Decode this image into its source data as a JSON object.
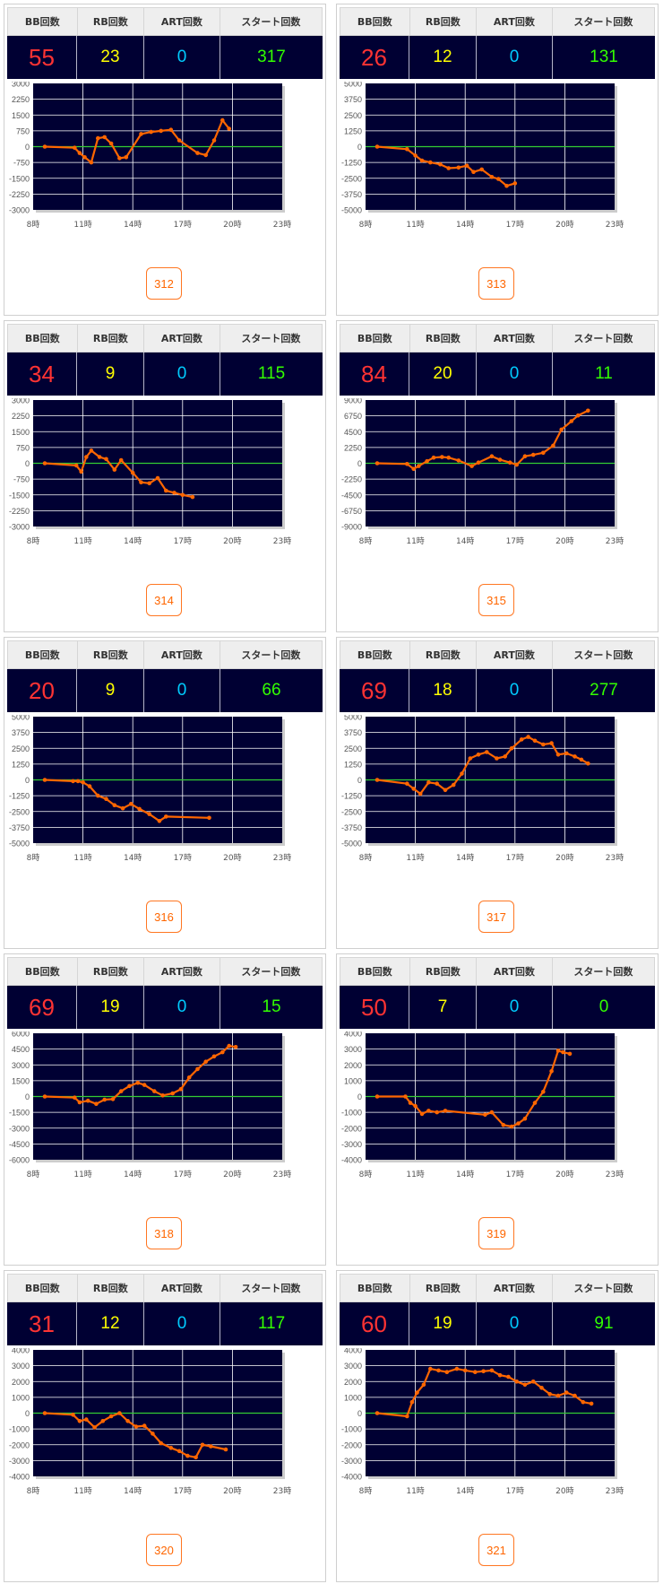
{
  "headers": {
    "bb": "BB回数",
    "rb": "RB回数",
    "art": "ART回数",
    "start": "スタート回数"
  },
  "x_ticks": [
    "8時",
    "11時",
    "14時",
    "17時",
    "20時",
    "23時"
  ],
  "colors": {
    "plot_bg": "#000033",
    "zero_line": "#33cc33",
    "series": "#ff6600",
    "grid": "#ffffff"
  },
  "machines": [
    {
      "id": "312",
      "bb": "55",
      "rb": "23",
      "art": "0",
      "start": "317"
    },
    {
      "id": "313",
      "bb": "26",
      "rb": "12",
      "art": "0",
      "start": "131"
    },
    {
      "id": "314",
      "bb": "34",
      "rb": "9",
      "art": "0",
      "start": "115"
    },
    {
      "id": "315",
      "bb": "84",
      "rb": "20",
      "art": "0",
      "start": "11"
    },
    {
      "id": "316",
      "bb": "20",
      "rb": "9",
      "art": "0",
      "start": "66"
    },
    {
      "id": "317",
      "bb": "69",
      "rb": "18",
      "art": "0",
      "start": "277"
    },
    {
      "id": "318",
      "bb": "69",
      "rb": "19",
      "art": "0",
      "start": "15"
    },
    {
      "id": "319",
      "bb": "50",
      "rb": "7",
      "art": "0",
      "start": "0"
    },
    {
      "id": "320",
      "bb": "31",
      "rb": "12",
      "art": "0",
      "start": "117"
    },
    {
      "id": "321",
      "bb": "60",
      "rb": "19",
      "art": "0",
      "start": "91"
    }
  ],
  "chart_data": [
    {
      "type": "line",
      "id": "312",
      "x_range": [
        8,
        23
      ],
      "ylim": [
        -3000,
        3000
      ],
      "y_ticks": [
        "3000",
        "2250",
        "1500",
        "750",
        "0",
        "-750",
        "-1500",
        "-2250",
        "-3000"
      ],
      "x": [
        8.7,
        10.5,
        10.8,
        11.1,
        11.5,
        11.9,
        12.3,
        12.7,
        13.2,
        13.6,
        14.5,
        15.1,
        15.7,
        16.3,
        16.8,
        17.9,
        18.4,
        18.9,
        19.4,
        19.8
      ],
      "y": [
        0,
        -50,
        -300,
        -500,
        -750,
        400,
        450,
        150,
        -550,
        -500,
        600,
        700,
        750,
        800,
        300,
        -300,
        -400,
        300,
        1250,
        850
      ]
    },
    {
      "type": "line",
      "id": "313",
      "x_range": [
        8,
        23
      ],
      "ylim": [
        -5000,
        5000
      ],
      "y_ticks": [
        "5000",
        "3750",
        "2500",
        "1250",
        "0",
        "-1250",
        "-2500",
        "-3750",
        "-5000"
      ],
      "x": [
        8.7,
        10.5,
        11.0,
        11.4,
        11.9,
        12.5,
        13.0,
        13.6,
        14.1,
        14.5,
        15.0,
        15.6,
        16.0,
        16.5,
        17.0
      ],
      "y": [
        0,
        -200,
        -700,
        -1100,
        -1250,
        -1400,
        -1700,
        -1650,
        -1500,
        -2000,
        -1800,
        -2400,
        -2550,
        -3100,
        -2900
      ]
    },
    {
      "type": "line",
      "id": "314",
      "x_range": [
        8,
        23
      ],
      "ylim": [
        -3000,
        3000
      ],
      "y_ticks": [
        "3000",
        "2250",
        "1500",
        "750",
        "0",
        "-750",
        "-1500",
        "-2250",
        "-3000"
      ],
      "x": [
        8.7,
        10.6,
        10.9,
        11.2,
        11.5,
        12.0,
        12.4,
        12.9,
        13.3,
        14.0,
        14.5,
        15.0,
        15.5,
        16.0,
        16.5,
        17.0,
        17.6
      ],
      "y": [
        0,
        -100,
        -400,
        300,
        600,
        300,
        200,
        -300,
        150,
        -450,
        -900,
        -950,
        -700,
        -1300,
        -1400,
        -1500,
        -1600
      ]
    },
    {
      "type": "line",
      "id": "315",
      "x_range": [
        8,
        23
      ],
      "ylim": [
        -9000,
        9000
      ],
      "y_ticks": [
        "9000",
        "6750",
        "4500",
        "2250",
        "0",
        "-2250",
        "-4500",
        "-6750",
        "-9000"
      ],
      "x": [
        8.7,
        10.5,
        10.9,
        11.2,
        11.7,
        12.1,
        12.6,
        13.0,
        13.6,
        14.4,
        14.8,
        15.6,
        16.1,
        16.7,
        17.1,
        17.6,
        18.1,
        18.7,
        19.3,
        19.8,
        20.4,
        20.8,
        21.4
      ],
      "y": [
        0,
        -100,
        -800,
        -400,
        300,
        800,
        900,
        800,
        400,
        -400,
        100,
        1000,
        500,
        100,
        -200,
        1000,
        1200,
        1500,
        2500,
        4800,
        6000,
        6800,
        7500
      ]
    },
    {
      "type": "line",
      "id": "316",
      "x_range": [
        8,
        23
      ],
      "ylim": [
        -5000,
        5000
      ],
      "y_ticks": [
        "5000",
        "3750",
        "2500",
        "1250",
        "0",
        "-1250",
        "-2500",
        "-3750",
        "-5000"
      ],
      "x": [
        8.7,
        10.4,
        10.7,
        11.0,
        11.4,
        11.9,
        12.4,
        12.9,
        13.4,
        13.9,
        14.4,
        15.0,
        15.6,
        16.0,
        18.6
      ],
      "y": [
        0,
        -100,
        -100,
        -200,
        -500,
        -1250,
        -1500,
        -2000,
        -2250,
        -1900,
        -2300,
        -2700,
        -3250,
        -2900,
        -3000
      ]
    },
    {
      "type": "line",
      "id": "317",
      "x_range": [
        8,
        23
      ],
      "ylim": [
        -5000,
        5000
      ],
      "y_ticks": [
        "5000",
        "3750",
        "2500",
        "1250",
        "0",
        "-1250",
        "-2500",
        "-3750",
        "-5000"
      ],
      "x": [
        8.7,
        10.5,
        10.9,
        11.3,
        11.8,
        12.3,
        12.8,
        13.3,
        13.8,
        14.3,
        14.8,
        15.3,
        15.9,
        16.4,
        16.8,
        17.4,
        17.8,
        18.2,
        18.7,
        19.2,
        19.6,
        20.1,
        20.6,
        21.0,
        21.4
      ],
      "y": [
        0,
        -300,
        -700,
        -1100,
        -200,
        -300,
        -800,
        -400,
        500,
        1700,
        2000,
        2200,
        1700,
        1850,
        2500,
        3200,
        3400,
        3100,
        2800,
        2900,
        2000,
        2100,
        1850,
        1600,
        1300
      ]
    },
    {
      "type": "line",
      "id": "318",
      "x_range": [
        8,
        23
      ],
      "ylim": [
        -6000,
        6000
      ],
      "y_ticks": [
        "6000",
        "4500",
        "3000",
        "1500",
        "0",
        "-1500",
        "-3000",
        "-4500",
        "-6000"
      ],
      "x": [
        8.7,
        10.5,
        10.8,
        11.3,
        11.8,
        12.3,
        12.8,
        13.3,
        13.8,
        14.3,
        14.7,
        15.3,
        15.8,
        16.4,
        16.9,
        17.4,
        17.9,
        18.4,
        18.9,
        19.4,
        19.8,
        20.2
      ],
      "y": [
        0,
        -100,
        -550,
        -400,
        -700,
        -300,
        -250,
        500,
        1000,
        1300,
        1100,
        500,
        100,
        300,
        700,
        1800,
        2600,
        3300,
        3800,
        4200,
        4800,
        4700
      ]
    },
    {
      "type": "line",
      "id": "319",
      "x_range": [
        8,
        23
      ],
      "ylim": [
        -4000,
        4000
      ],
      "y_ticks": [
        "4000",
        "3000",
        "2000",
        "1000",
        "0",
        "-1000",
        "-2000",
        "-3000",
        "-4000"
      ],
      "x": [
        8.7,
        10.4,
        10.7,
        11.0,
        11.4,
        11.8,
        12.3,
        12.8,
        15.2,
        15.6,
        16.3,
        16.8,
        17.2,
        17.6,
        18.2,
        18.7,
        19.2,
        19.6,
        19.9,
        20.3
      ],
      "y": [
        0,
        0,
        -400,
        -600,
        -1100,
        -900,
        -1000,
        -900,
        -1150,
        -1000,
        -1800,
        -1900,
        -1700,
        -1400,
        -400,
        300,
        1600,
        2900,
        2800,
        2700
      ]
    },
    {
      "type": "line",
      "id": "320",
      "x_range": [
        8,
        23
      ],
      "ylim": [
        -4000,
        4000
      ],
      "y_ticks": [
        "4000",
        "3000",
        "2000",
        "1000",
        "0",
        "-1000",
        "-2000",
        "-3000",
        "-4000"
      ],
      "x": [
        8.7,
        10.4,
        10.8,
        11.2,
        11.7,
        12.2,
        12.7,
        13.2,
        13.7,
        14.2,
        14.7,
        15.2,
        15.7,
        16.3,
        16.8,
        17.3,
        17.8,
        18.2,
        18.7,
        19.6
      ],
      "y": [
        0,
        -100,
        -500,
        -400,
        -900,
        -500,
        -200,
        0,
        -500,
        -850,
        -800,
        -1300,
        -1900,
        -2200,
        -2400,
        -2700,
        -2800,
        -2000,
        -2100,
        -2300
      ]
    },
    {
      "type": "line",
      "id": "321",
      "x_range": [
        8,
        23
      ],
      "ylim": [
        -4000,
        4000
      ],
      "y_ticks": [
        "4000",
        "3000",
        "2000",
        "1000",
        "0",
        "-1000",
        "-2000",
        "-3000",
        "-4000"
      ],
      "x": [
        8.7,
        10.5,
        10.8,
        11.1,
        11.5,
        11.9,
        12.4,
        12.9,
        13.5,
        14.0,
        14.6,
        15.1,
        15.6,
        16.1,
        16.6,
        17.1,
        17.6,
        18.1,
        18.6,
        19.1,
        19.6,
        20.1,
        20.6,
        21.1,
        21.6
      ],
      "y": [
        0,
        -200,
        700,
        1300,
        1800,
        2800,
        2700,
        2600,
        2800,
        2700,
        2600,
        2650,
        2700,
        2400,
        2300,
        2000,
        1800,
        2000,
        1600,
        1200,
        1100,
        1300,
        1100,
        700,
        600
      ]
    }
  ]
}
